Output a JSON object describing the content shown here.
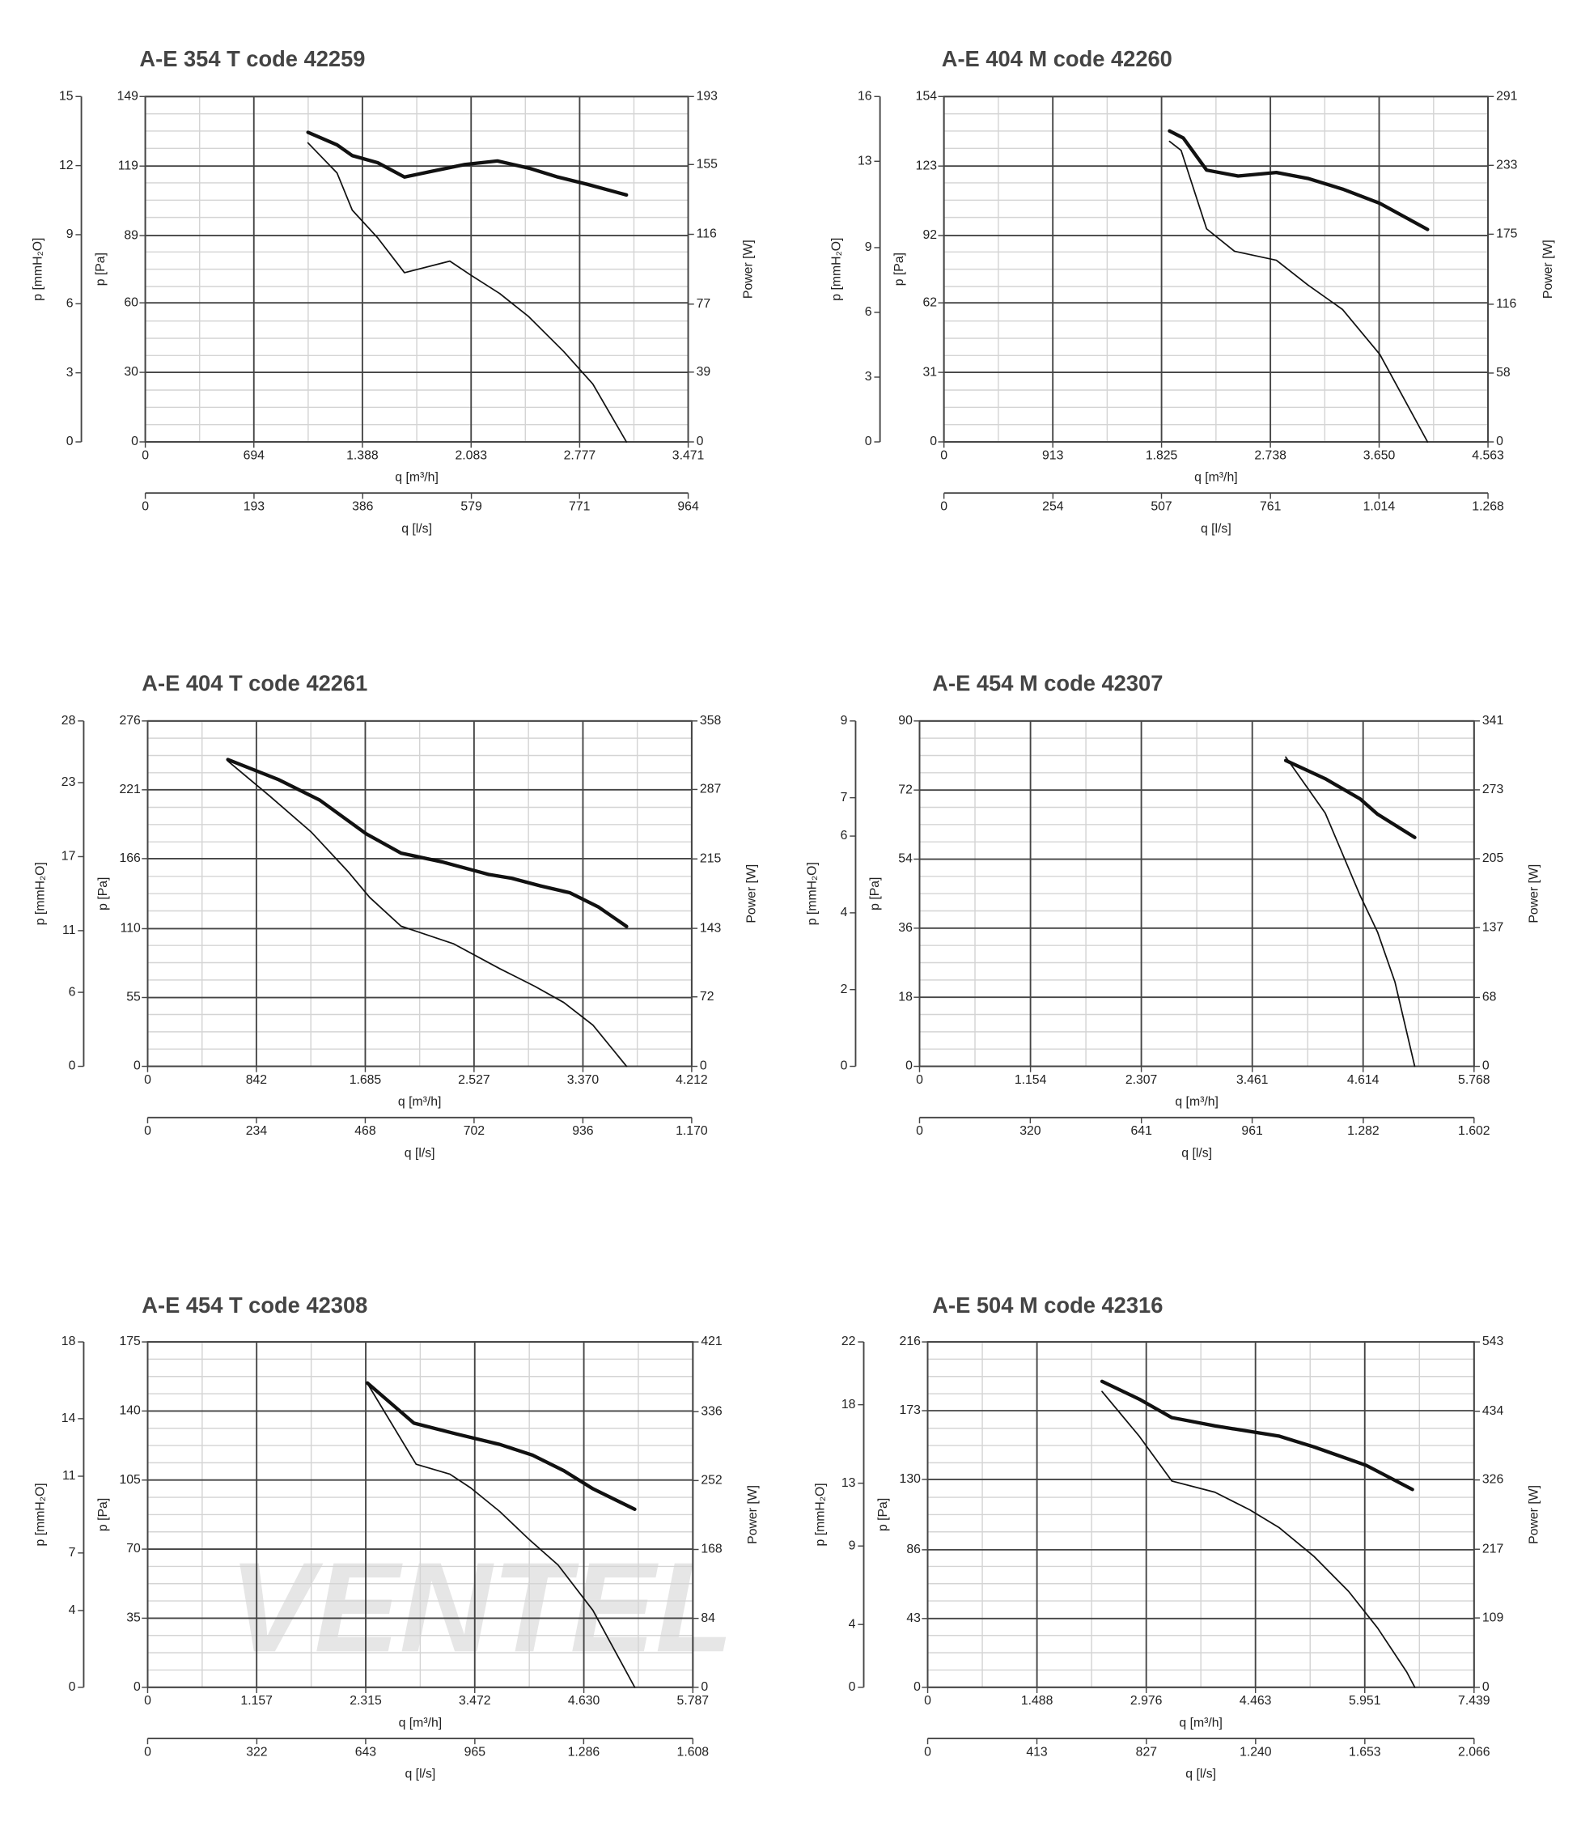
{
  "chart_data": [
    {
      "type": "line",
      "title": "A-E 354 T code 42259",
      "xlabel": "q [m³/h]",
      "x2label": "q [l/s]",
      "ylabel": "p [Pa]",
      "y3label": "p [mmH₂O]",
      "y2label": "Power [W]",
      "xlim": [
        0,
        3471
      ],
      "xticks": [
        0,
        694,
        {
          "value": 1388,
          "label": "1.388"
        },
        {
          "value": 2083,
          "label": "2.083"
        },
        {
          "value": 2777,
          "label": "2.777"
        },
        {
          "value": 3471,
          "label": "3.471"
        }
      ],
      "x2lim": [
        0,
        964
      ],
      "x2ticks": [
        0,
        193,
        386,
        579,
        771,
        964
      ],
      "ylim": [
        0,
        149
      ],
      "yticks": [
        0,
        30,
        60,
        89,
        119,
        149
      ],
      "y3lim": [
        0,
        15
      ],
      "y3ticks": [
        0,
        3,
        6,
        9,
        12,
        15
      ],
      "y2lim": [
        0,
        193
      ],
      "y2ticks": [
        0,
        39,
        77,
        116,
        155,
        193
      ],
      "grid": true,
      "series": [
        {
          "color": "#111111",
          "width": 1.2,
          "x": [
            1040,
            1226,
            1323,
            1486,
            1657,
            1947,
            2080,
            2266,
            2452,
            2675,
            2861,
            3076
          ],
          "values": [
            129,
            116,
            100,
            88,
            73,
            78,
            72,
            64,
            54,
            39,
            25,
            0
          ]
        },
        {
          "color": "#111111",
          "width": 3,
          "axis": "y2",
          "x": [
            1040,
            1226,
            1323,
            1486,
            1657,
            1820,
            2043,
            2251,
            2452,
            2638,
            2824,
            3076
          ],
          "values": [
            173,
            166,
            160,
            156,
            148,
            151,
            155,
            157,
            153,
            148,
            144,
            138
          ]
        }
      ]
    },
    {
      "type": "line",
      "title": "A-E 404 M code 42260",
      "xlabel": "q [m³/h]",
      "x2label": "q [l/s]",
      "ylabel": "p [Pa]",
      "y3label": "p [mmH₂O]",
      "y2label": "Power [W]",
      "xlim": [
        0,
        4563
      ],
      "xticks": [
        0,
        913,
        {
          "value": 1825,
          "label": "1.825"
        },
        {
          "value": 2738,
          "label": "2.738"
        },
        {
          "value": 3650,
          "label": "3.650"
        },
        {
          "value": 4563,
          "label": "4.563"
        }
      ],
      "x2lim": [
        0,
        1268
      ],
      "x2ticks": [
        0,
        254,
        507,
        761,
        {
          "value": 1014,
          "label": "1.014"
        },
        {
          "value": 1268,
          "label": "1.268"
        }
      ],
      "ylim": [
        0,
        154
      ],
      "yticks": [
        0,
        31,
        62,
        92,
        123,
        154
      ],
      "y3lim": [
        0,
        16
      ],
      "y3ticks": [
        0,
        3,
        6,
        9,
        13,
        16
      ],
      "y2lim": [
        0,
        291
      ],
      "y2ticks": [
        0,
        58,
        116,
        175,
        233,
        291
      ],
      "grid": true,
      "series": [
        {
          "color": "#111111",
          "width": 1.2,
          "x": [
            1892,
            1989,
            2203,
            2437,
            2788,
            3052,
            3344,
            3656,
            4056
          ],
          "values": [
            134,
            130,
            95,
            85,
            81,
            70,
            59,
            39,
            0
          ]
        },
        {
          "color": "#111111",
          "width": 3,
          "axis": "y2",
          "x": [
            1892,
            2008,
            2203,
            2467,
            2788,
            3052,
            3344,
            3656,
            4056
          ],
          "values": [
            262,
            256,
            229,
            224,
            227,
            222,
            213,
            201,
            179
          ]
        }
      ]
    },
    {
      "type": "line",
      "title": "A-E 404 T code 42261",
      "xlabel": "q [m³/h]",
      "x2label": "q [l/s]",
      "ylabel": "p [Pa]",
      "y3label": "p [mmH₂O]",
      "y2label": "Power [W]",
      "xlim": [
        0,
        4212
      ],
      "xticks": [
        0,
        842,
        {
          "value": 1685,
          "label": "1.685"
        },
        {
          "value": 2527,
          "label": "2.527"
        },
        {
          "value": 3370,
          "label": "3.370"
        },
        {
          "value": 4212,
          "label": "4.212"
        }
      ],
      "x2lim": [
        0,
        1170
      ],
      "x2ticks": [
        0,
        234,
        468,
        702,
        936,
        {
          "value": 1170,
          "label": "1.170"
        }
      ],
      "ylim": [
        0,
        276
      ],
      "yticks": [
        0,
        55,
        110,
        166,
        221,
        276
      ],
      "y3lim": [
        0,
        28
      ],
      "y3ticks": [
        0,
        6,
        11,
        17,
        23,
        28
      ],
      "y2lim": [
        0,
        358
      ],
      "y2ticks": [
        0,
        72,
        143,
        215,
        287,
        358
      ],
      "grid": true,
      "series": [
        {
          "color": "#111111",
          "width": 1.2,
          "x": [
            621,
            945,
            1269,
            1557,
            1719,
            1962,
            2367,
            2727,
            2997,
            3222,
            3447,
            3708
          ],
          "values": [
            244,
            216,
            187,
            155,
            135,
            112,
            98,
            78,
            64,
            51,
            33,
            0
          ]
        },
        {
          "color": "#111111",
          "width": 3,
          "axis": "y2",
          "x": [
            621,
            1017,
            1332,
            1692,
            1962,
            2277,
            2637,
            2817,
            3042,
            3267,
            3492,
            3708
          ],
          "values": [
            318,
            297,
            276,
            241,
            221,
            212,
            199,
            195,
            187,
            180,
            165,
            145
          ]
        }
      ]
    },
    {
      "type": "line",
      "title": "A-E 454 M code 42307",
      "xlabel": "q [m³/h]",
      "x2label": "q [l/s]",
      "ylabel": "p [Pa]",
      "y3label": "p [mmH₂O]",
      "y2label": "Power [W]",
      "xlim": [
        0,
        5768
      ],
      "xticks": [
        0,
        {
          "value": 1154,
          "label": "1.154"
        },
        {
          "value": 2307,
          "label": "2.307"
        },
        {
          "value": 3461,
          "label": "3.461"
        },
        {
          "value": 4614,
          "label": "4.614"
        },
        {
          "value": 5768,
          "label": "5.768"
        }
      ],
      "x2lim": [
        0,
        1602
      ],
      "x2ticks": [
        0,
        320,
        641,
        961,
        {
          "value": 1282,
          "label": "1.282"
        },
        {
          "value": 1602,
          "label": "1.602"
        }
      ],
      "ylim": [
        0,
        90
      ],
      "yticks": [
        0,
        18,
        36,
        54,
        72,
        90
      ],
      "y3lim": [
        0,
        9
      ],
      "y3ticks": [
        0,
        2,
        4,
        6,
        7,
        9
      ],
      "y2lim": [
        0,
        341
      ],
      "y2ticks": [
        0,
        68,
        137,
        205,
        273,
        341
      ],
      "grid": true,
      "series": [
        {
          "color": "#111111",
          "width": 1.2,
          "x": [
            3809,
            4220,
            4583,
            4764,
            4945,
            5151
          ],
          "values": [
            80.6,
            66,
            44.5,
            35,
            22,
            0
          ]
        },
        {
          "color": "#111111",
          "width": 3,
          "axis": "y2",
          "x": [
            3809,
            4220,
            4583,
            4764,
            5151
          ],
          "values": [
            302,
            284,
            264,
            249,
            226
          ]
        }
      ]
    },
    {
      "type": "line",
      "title": "A-E 454 T code 42308",
      "xlabel": "q [m³/h]",
      "x2label": "q [l/s]",
      "ylabel": "p [Pa]",
      "y3label": "p [mmH₂O]",
      "y2label": "Power [W]",
      "watermark": "VENTEL",
      "xlim": [
        0,
        5787
      ],
      "xticks": [
        0,
        {
          "value": 1157,
          "label": "1.157"
        },
        {
          "value": 2315,
          "label": "2.315"
        },
        {
          "value": 3472,
          "label": "3.472"
        },
        {
          "value": 4630,
          "label": "4.630"
        },
        {
          "value": 5787,
          "label": "5.787"
        }
      ],
      "x2lim": [
        0,
        1608
      ],
      "x2ticks": [
        0,
        322,
        643,
        965,
        {
          "value": 1286,
          "label": "1.286"
        },
        {
          "value": 1608,
          "label": "1.608"
        }
      ],
      "ylim": [
        0,
        175
      ],
      "yticks": [
        0,
        35,
        70,
        105,
        140,
        175
      ],
      "y3lim": [
        0,
        18
      ],
      "y3ticks": [
        0,
        4,
        7,
        11,
        14,
        18
      ],
      "y2lim": [
        0,
        421
      ],
      "y2ticks": [
        0,
        84,
        168,
        252,
        336,
        421
      ],
      "grid": true,
      "series": [
        {
          "color": "#111111",
          "width": 1.2,
          "x": [
            2332,
            2850,
            3208,
            3430,
            3739,
            4047,
            4356,
            4726,
            5170
          ],
          "values": [
            154,
            113,
            108,
            101,
            89,
            75,
            62,
            39,
            0
          ]
        },
        {
          "color": "#111111",
          "width": 3,
          "axis": "y2",
          "x": [
            2332,
            2826,
            3270,
            3739,
            4085,
            4418,
            4726,
            5170
          ],
          "values": [
            371,
            322,
            309,
            296,
            283,
            264,
            242,
            217
          ]
        }
      ]
    },
    {
      "type": "line",
      "title": "A-E 504 M code 42316",
      "xlabel": "q [m³/h]",
      "x2label": "q [l/s]",
      "ylabel": "p [Pa]",
      "y3label": "p [mmH₂O]",
      "y2label": "Power [W]",
      "xlim": [
        0,
        7439
      ],
      "xticks": [
        0,
        {
          "value": 1488,
          "label": "1.488"
        },
        {
          "value": 2976,
          "label": "2.976"
        },
        {
          "value": 4463,
          "label": "4.463"
        },
        {
          "value": 5951,
          "label": "5.951"
        },
        {
          "value": 7439,
          "label": "7.439"
        }
      ],
      "x2lim": [
        0,
        2066
      ],
      "x2ticks": [
        0,
        413,
        827,
        {
          "value": 1240,
          "label": "1.240"
        },
        {
          "value": 1653,
          "label": "1.653"
        },
        {
          "value": 2066,
          "label": "2.066"
        }
      ],
      "ylim": [
        0,
        216
      ],
      "yticks": [
        0,
        43,
        86,
        130,
        173,
        216
      ],
      "y3lim": [
        0,
        22
      ],
      "y3ticks": [
        0,
        4,
        9,
        13,
        18,
        22
      ],
      "y2lim": [
        0,
        543
      ],
      "y2ticks": [
        0,
        109,
        217,
        326,
        434,
        543
      ],
      "grid": true,
      "series": [
        {
          "color": "#111111",
          "width": 1.2,
          "x": [
            2374,
            2881,
            3324,
            3910,
            4385,
            4781,
            5256,
            5731,
            6127,
            6523,
            6632
          ],
          "values": [
            185,
            157,
            129,
            122,
            111,
            100,
            82,
            60,
            37,
            9.5,
            0
          ]
        },
        {
          "color": "#111111",
          "width": 3,
          "axis": "y2",
          "x": [
            2374,
            2881,
            3324,
            3910,
            4781,
            5256,
            5969,
            6600
          ],
          "values": [
            481,
            453,
            424,
            411,
            395,
            378,
            349,
            311
          ]
        }
      ]
    }
  ]
}
